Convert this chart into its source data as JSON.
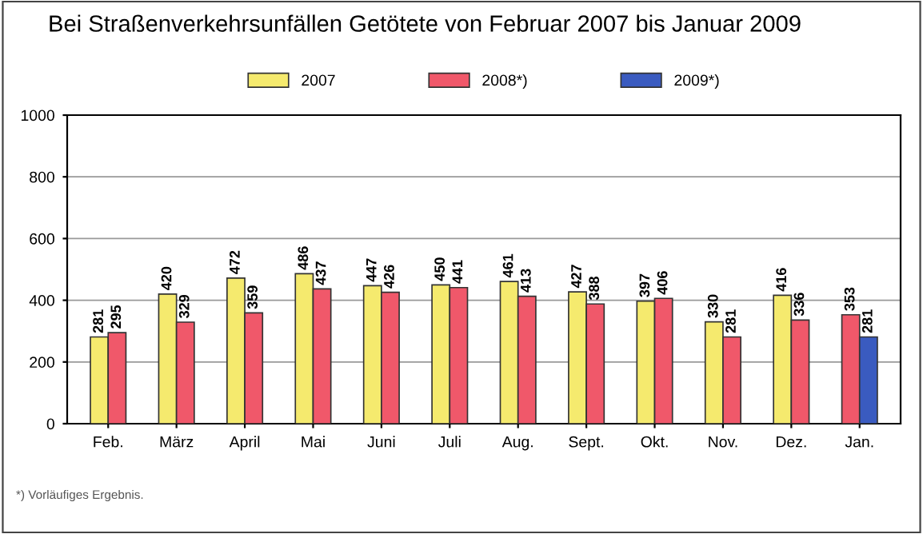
{
  "chart_data": {
    "type": "bar",
    "title": "Bei Straßenverkehrsunfällen Getötete von Februar 2007 bis Januar 2009",
    "categories": [
      "Feb.",
      "März",
      "April",
      "Mai",
      "Juni",
      "Juli",
      "Aug.",
      "Sept.",
      "Okt.",
      "Nov.",
      "Dez.",
      "Jan."
    ],
    "series": [
      {
        "name": "2007",
        "color": "#f5ea6e",
        "values": [
          281,
          420,
          472,
          486,
          447,
          450,
          461,
          427,
          397,
          330,
          416,
          null
        ]
      },
      {
        "name": "2008*)",
        "color": "#f0586a",
        "values": [
          295,
          329,
          359,
          437,
          426,
          441,
          413,
          388,
          406,
          281,
          336,
          353
        ]
      },
      {
        "name": "2009*)",
        "color": "#3a5bc0",
        "values": [
          null,
          null,
          null,
          null,
          null,
          null,
          null,
          null,
          null,
          null,
          null,
          281
        ]
      }
    ],
    "ylim": [
      0,
      1000
    ],
    "yticks": [
      0,
      200,
      400,
      600,
      800,
      1000
    ],
    "grid": "y",
    "legend": "top",
    "data_labels": true,
    "annotations": [
      "*) Vorläufiges Ergebnis."
    ]
  }
}
